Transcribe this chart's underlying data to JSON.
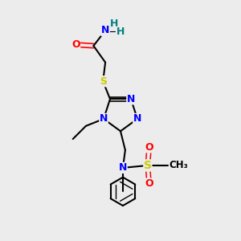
{
  "bg_color": "#ececec",
  "atom_colors": {
    "C": "#000000",
    "N": "#0000ff",
    "O": "#ff0000",
    "S": "#cccc00",
    "H": "#008080"
  },
  "bond_color": "#000000",
  "bond_width": 1.5,
  "font_size_atoms": 9,
  "font_size_small": 8
}
